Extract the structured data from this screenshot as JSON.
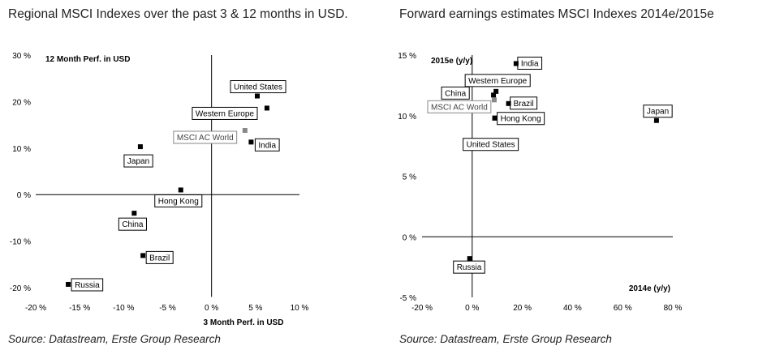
{
  "chart_data": [
    {
      "type": "scatter",
      "title": "Regional MSCI Indexes over the past 3 & 12 months in USD.",
      "xlabel": "3 Month Perf. in USD",
      "ylabel": "12 Month Perf. in USD",
      "xlim": [
        -20,
        10
      ],
      "ylim": [
        -22,
        30
      ],
      "xticks": [
        {
          "value": -20,
          "label": "-20 %"
        },
        {
          "value": -15,
          "label": "-15 %"
        },
        {
          "value": -10,
          "label": "-10 %"
        },
        {
          "value": -5,
          "label": "-5 %"
        },
        {
          "value": 0,
          "label": "0 %"
        },
        {
          "value": 5,
          "label": "5 %"
        },
        {
          "value": 10,
          "label": "10 %"
        }
      ],
      "yticks": [
        {
          "value": 30,
          "label": "30 %"
        },
        {
          "value": 20,
          "label": "20 %"
        },
        {
          "value": 10,
          "label": "10 %"
        },
        {
          "value": 0,
          "label": "0 %"
        },
        {
          "value": -10,
          "label": "-10 %"
        },
        {
          "value": -20,
          "label": "-20 %"
        }
      ],
      "points": [
        {
          "name": "United States",
          "x": 5.2,
          "y": 21.2
        },
        {
          "name": "Western Europe",
          "x": 6.3,
          "y": 18.6
        },
        {
          "name": "MSCI AC World",
          "x": 3.8,
          "y": 13.8
        },
        {
          "name": "India",
          "x": 4.5,
          "y": 11.3
        },
        {
          "name": "Japan",
          "x": -8.1,
          "y": 10.3
        },
        {
          "name": "Hong Kong",
          "x": -3.5,
          "y": 1.0
        },
        {
          "name": "China",
          "x": -8.8,
          "y": -4.0
        },
        {
          "name": "Brazil",
          "x": -7.8,
          "y": -13.1
        },
        {
          "name": "Russia",
          "x": -16.3,
          "y": -19.3
        }
      ],
      "source": "Source: Datastream, Erste Group Research"
    },
    {
      "type": "scatter",
      "title": "Forward earnings estimates MSCI Indexes 2014e/2015e",
      "xlabel": "2014e (y/y)",
      "ylabel": "2015e (y/y)",
      "xlim": [
        -20,
        80
      ],
      "ylim": [
        -5,
        15
      ],
      "xticks": [
        {
          "value": -20,
          "label": "-20 %"
        },
        {
          "value": 0,
          "label": "0 %"
        },
        {
          "value": 20,
          "label": "20 %"
        },
        {
          "value": 40,
          "label": "40 %"
        },
        {
          "value": 60,
          "label": "60 %"
        },
        {
          "value": 80,
          "label": "80 %"
        }
      ],
      "yticks": [
        {
          "value": 15,
          "label": "15 %"
        },
        {
          "value": 10,
          "label": "10 %"
        },
        {
          "value": 5,
          "label": "5 %"
        },
        {
          "value": 0,
          "label": "0 %"
        },
        {
          "value": -5,
          "label": "-5 %"
        }
      ],
      "points": [
        {
          "name": "India",
          "x": 17.5,
          "y": 14.3
        },
        {
          "name": "Western Europe",
          "x": 9.5,
          "y": 12.0
        },
        {
          "name": "China",
          "x": 8.5,
          "y": 11.7
        },
        {
          "name": "MSCI AC World",
          "x": 8.8,
          "y": 11.3
        },
        {
          "name": "Brazil",
          "x": 14.5,
          "y": 11.0
        },
        {
          "name": "Hong Kong",
          "x": 9.0,
          "y": 9.8
        },
        {
          "name": "United States",
          "x": 9.0,
          "y": 9.8
        },
        {
          "name": "Japan",
          "x": 73.5,
          "y": 9.6
        },
        {
          "name": "Russia",
          "x": -1.0,
          "y": -1.8
        }
      ],
      "source": "Source: Datastream, Erste Group Research"
    }
  ]
}
